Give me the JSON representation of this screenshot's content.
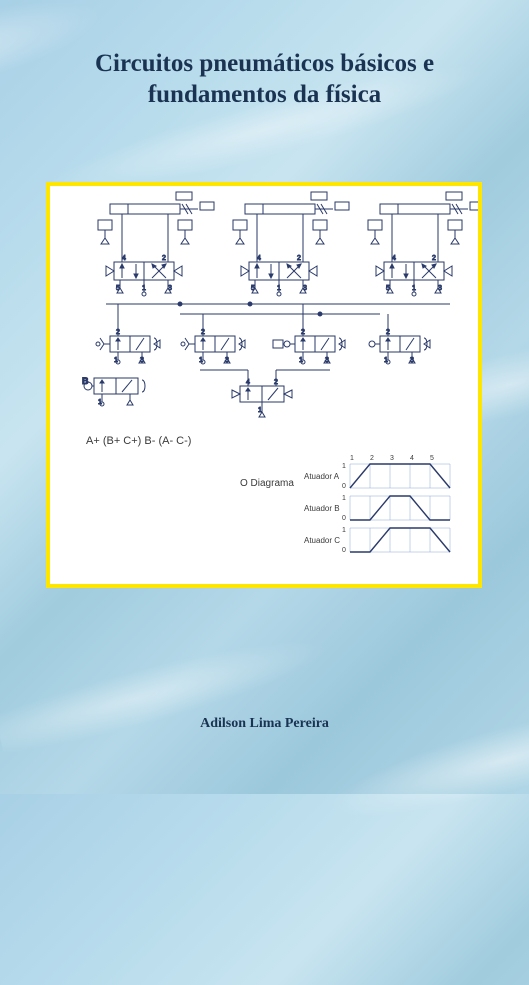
{
  "cover": {
    "title_line1": "Circuitos pneumáticos básicos e",
    "title_line2": "fundamentos da física",
    "author": "Adilson Lima Pereira"
  },
  "diagram": {
    "border_color": "#ffe600",
    "bg": "#ffffff",
    "circuit_stroke": "#2a3a6a",
    "text_color": "#3a3a3a",
    "formula": "A+ (B+ C+) B- (A- C-)",
    "chart_label": "O Diagrama",
    "disp_chart": {
      "series": [
        {
          "label": "Atuador A",
          "points": [
            [
              0,
              0
            ],
            [
              1,
              1
            ],
            [
              4,
              1
            ],
            [
              5,
              0
            ]
          ]
        },
        {
          "label": "Atuador B",
          "points": [
            [
              0,
              0
            ],
            [
              1,
              0
            ],
            [
              2,
              1
            ],
            [
              3,
              1
            ],
            [
              4,
              0
            ],
            [
              5,
              0
            ]
          ]
        },
        {
          "label": "Atuador C",
          "points": [
            [
              0,
              0
            ],
            [
              1,
              0
            ],
            [
              2,
              1
            ],
            [
              4,
              1
            ],
            [
              5,
              0
            ]
          ]
        }
      ],
      "xmax": 5,
      "grid_color": "#8aa8d8",
      "line_color": "#2a3a6a",
      "label_fontsize": 8
    },
    "branches": 3,
    "sensor_blocks": 4,
    "valve_ports": [
      "1",
      "2",
      "3",
      "4",
      "5"
    ]
  }
}
